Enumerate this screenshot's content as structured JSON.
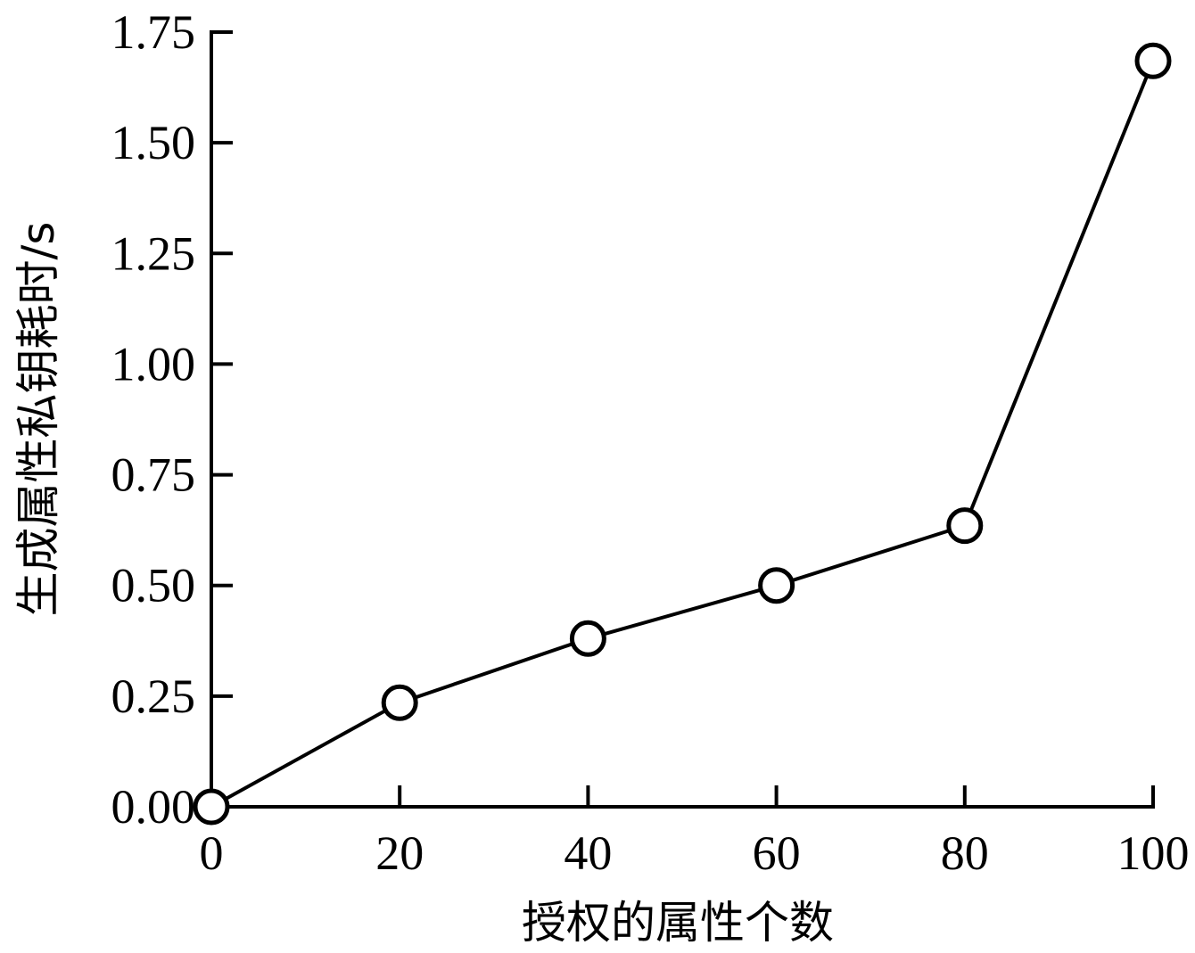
{
  "chart_data": {
    "type": "line",
    "title": "",
    "xlabel": "授权的属性个数",
    "ylabel": "生成属性私钥耗时/s",
    "xlim": [
      0,
      100
    ],
    "ylim": [
      0,
      1.75
    ],
    "x_ticks": [
      "0",
      "20",
      "40",
      "60",
      "80",
      "100"
    ],
    "y_ticks": [
      "0.00",
      "0.25",
      "0.50",
      "0.75",
      "1.00",
      "1.25",
      "1.50",
      "1.75"
    ],
    "grid": false,
    "marker": "open-circle",
    "series": [
      {
        "x": [
          0,
          20,
          40,
          60,
          80,
          100
        ],
        "values": [
          0.0,
          0.235,
          0.38,
          0.5,
          0.635,
          1.685
        ]
      }
    ],
    "colors": {
      "line": "#000000",
      "marker_fill": "#ffffff"
    }
  }
}
